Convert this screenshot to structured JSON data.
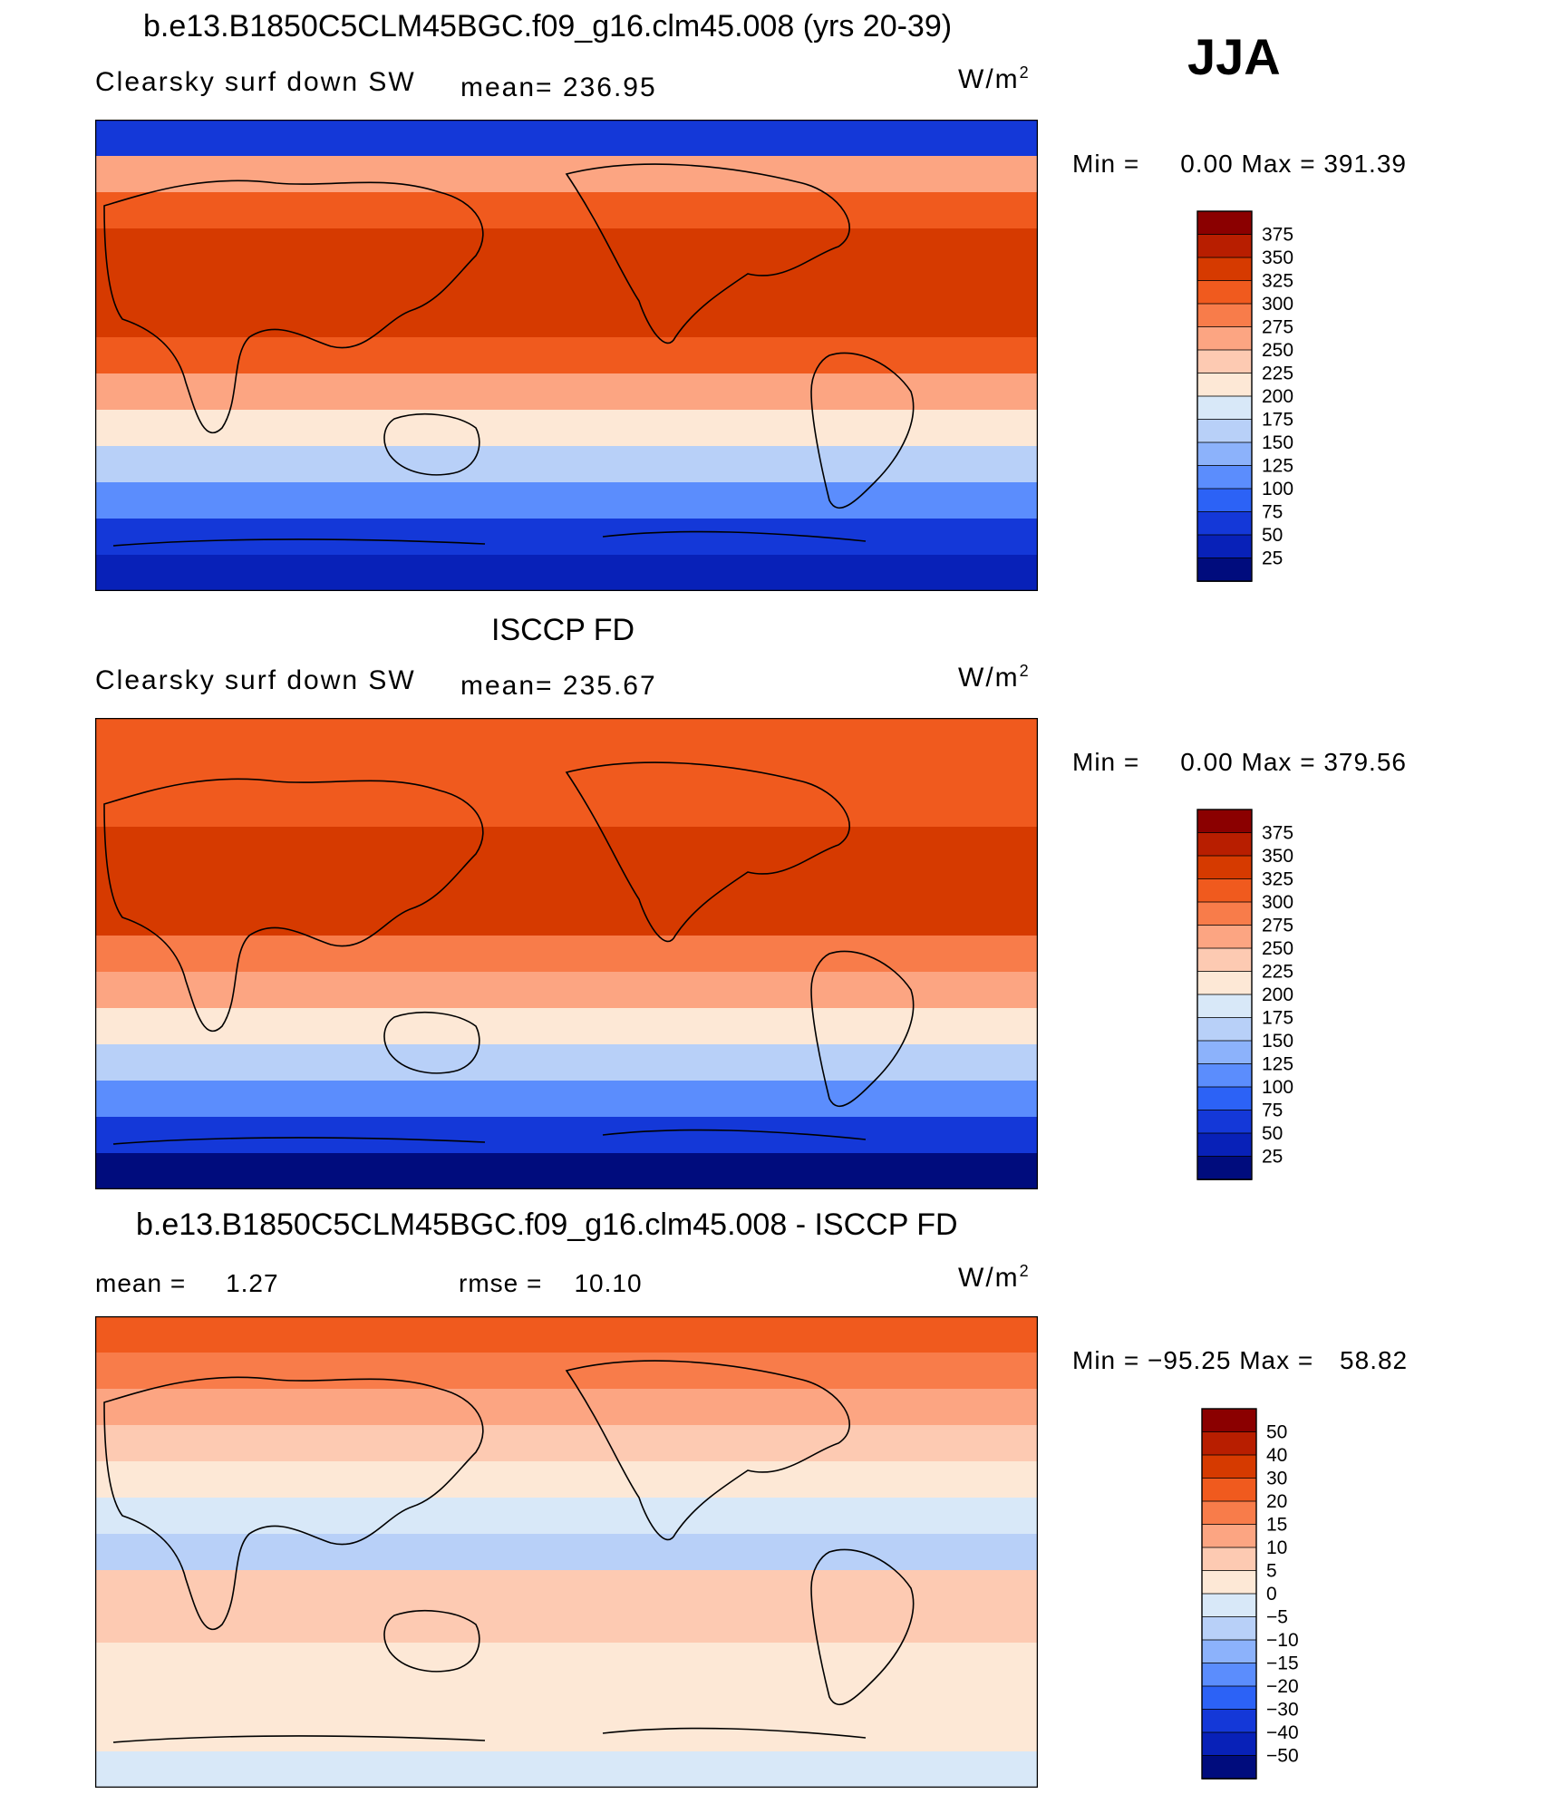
{
  "season": "JJA",
  "units": "W/m",
  "units_sup": "2",
  "min_label": "Min =",
  "max_label": "Max =",
  "panels": [
    {
      "title": "b.e13.B1850C5CLM45BGC.f09_g16.clm45.008 (yrs 20-39)",
      "left_label": "Clearsky surf down SW",
      "center_label": "mean= 236.95",
      "min": "0.00",
      "max": "391.39"
    },
    {
      "title": "ISCCP FD",
      "left_label": "Clearsky surf down SW",
      "center_label": "mean= 235.67",
      "min": "0.00",
      "max": "379.56"
    },
    {
      "title": "b.e13.B1850C5CLM45BGC.f09_g16.clm45.008 - ISCCP FD",
      "left_label": "mean =     1.27",
      "center_label": "rmse =    10.10",
      "min": "−95.25",
      "max": "58.82"
    }
  ],
  "chart_data": [
    {
      "type": "heatmap",
      "title": "b.e13.B1850C5CLM45BGC.f09_g16.clm45.008 (yrs 20-39)",
      "variable": "Clearsky surf down SW",
      "mean": 236.95,
      "min": 0.0,
      "max": 391.39,
      "colorbar_levels": [
        375,
        350,
        325,
        300,
        275,
        250,
        225,
        200,
        175,
        150,
        125,
        100,
        75,
        50,
        25
      ],
      "colorbar_colors": [
        "#8b0000",
        "#b81e00",
        "#d63a00",
        "#f05a1e",
        "#f87c4a",
        "#fca582",
        "#fdcab2",
        "#fde8d6",
        "#d8e8f8",
        "#b8d0f8",
        "#8cb2fb",
        "#5b8dfd",
        "#2c62f6",
        "#1438d8",
        "#0821b8",
        "#000c7d"
      ],
      "lat_profile_values": [
        60,
        250,
        320,
        340,
        345,
        330,
        300,
        260,
        220,
        170,
        120,
        70,
        25
      ]
    },
    {
      "type": "heatmap",
      "title": "ISCCP FD",
      "variable": "Clearsky surf down SW",
      "mean": 235.67,
      "min": 0.0,
      "max": 379.56,
      "colorbar_levels": [
        375,
        350,
        325,
        300,
        275,
        250,
        225,
        200,
        175,
        150,
        125,
        100,
        75,
        50,
        25
      ],
      "colorbar_colors": [
        "#8b0000",
        "#b81e00",
        "#d63a00",
        "#f05a1e",
        "#f87c4a",
        "#fca582",
        "#fdcab2",
        "#fde8d6",
        "#d8e8f8",
        "#b8d0f8",
        "#8cb2fb",
        "#5b8dfd",
        "#2c62f6",
        "#1438d8",
        "#0821b8",
        "#000c7d"
      ],
      "lat_profile_values": [
        300,
        310,
        320,
        335,
        340,
        325,
        295,
        255,
        215,
        165,
        115,
        65,
        20
      ]
    },
    {
      "type": "heatmap",
      "title": "b.e13.B1850C5CLM45BGC.f09_g16.clm45.008 - ISCCP FD",
      "mean": 1.27,
      "rmse": 10.1,
      "min": -95.25,
      "max": 58.82,
      "colorbar_levels": [
        50,
        40,
        30,
        20,
        15,
        10,
        5,
        0,
        -5,
        -10,
        -15,
        -20,
        -30,
        -40,
        -50
      ],
      "colorbar_labels": [
        "50",
        "40",
        "30",
        "20",
        "15",
        "10",
        "5",
        "0",
        "−5",
        "−10",
        "−15",
        "−20",
        "−30",
        "−40",
        "−50"
      ],
      "colorbar_colors": [
        "#8b0000",
        "#b81e00",
        "#d63a00",
        "#f05a1e",
        "#f87c4a",
        "#fca582",
        "#fdcab2",
        "#fde8d6",
        "#d8e8f8",
        "#b8d0f8",
        "#8cb2fb",
        "#5b8dfd",
        "#2c62f6",
        "#1438d8",
        "#0821b8",
        "#000c7d"
      ],
      "lat_profile_values": [
        20,
        15,
        10,
        5,
        0,
        -5,
        -10,
        5,
        5,
        3,
        2,
        3,
        -3
      ]
    }
  ]
}
